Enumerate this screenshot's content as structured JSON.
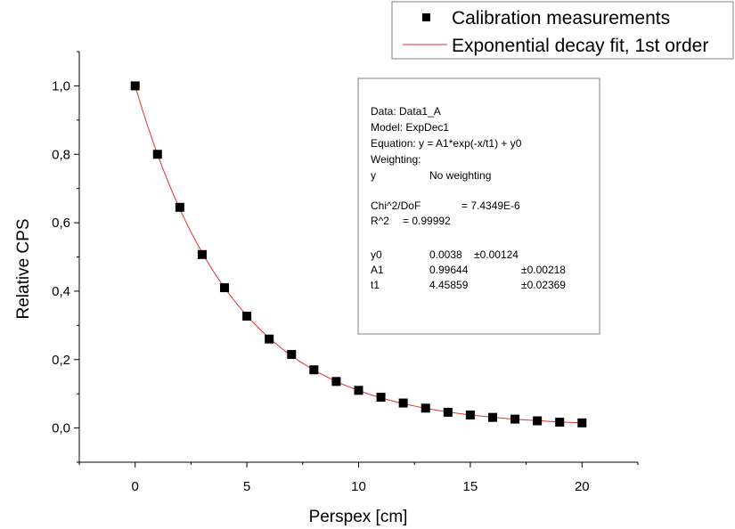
{
  "chart_data": {
    "type": "scatter",
    "xlabel": "Perspex [cm]",
    "ylabel": "Relative CPS",
    "xlim": [
      -2.5,
      22.5
    ],
    "ylim": [
      -0.1,
      1.1
    ],
    "x_ticks": [
      0,
      5,
      10,
      15,
      20
    ],
    "x_tick_labels": [
      "0",
      "5",
      "10",
      "15",
      "20"
    ],
    "y_ticks": [
      0.0,
      0.2,
      0.4,
      0.6,
      0.8,
      1.0
    ],
    "y_tick_labels": [
      "0,0",
      "0,2",
      "0,4",
      "0,6",
      "0,8",
      "1,0"
    ],
    "grid": false,
    "legend_position": "top-right",
    "series": [
      {
        "name": "Calibration measurements",
        "kind": "scatter",
        "marker": "square",
        "color": "#000000",
        "x": [
          0,
          1,
          2,
          3,
          4,
          5,
          6,
          7,
          8,
          9,
          10,
          11,
          12,
          13,
          14,
          15,
          16,
          17,
          18,
          19,
          20
        ],
        "y": [
          1.0,
          0.8,
          0.645,
          0.507,
          0.41,
          0.327,
          0.26,
          0.215,
          0.17,
          0.136,
          0.11,
          0.09,
          0.073,
          0.058,
          0.046,
          0.038,
          0.031,
          0.026,
          0.021,
          0.017,
          0.015
        ]
      },
      {
        "name": "Exponential decay fit, 1st order",
        "kind": "line",
        "color": "#e03030",
        "model": {
          "A1": 0.99644,
          "t1": 4.45859,
          "y0": 0.0038
        },
        "x_range": [
          0,
          20
        ]
      }
    ],
    "stats_box": {
      "lines": [
        "Data: Data1_A",
        "Model: ExpDec1",
        "Equation: y = A1*exp(-x/t1) + y0",
        "Weighting:"
      ],
      "weighting": {
        "key": "y",
        "value": "No weighting"
      },
      "chi2_label": "Chi^2/DoF",
      "chi2_value": "= 7.4349E-6",
      "r2_label": "R^2",
      "r2_value": "=  0.99992",
      "params": [
        {
          "name": "y0",
          "value": "0.0038",
          "error": "±0.00124"
        },
        {
          "name": "A1",
          "value": "0.99644",
          "error": "±0.00218"
        },
        {
          "name": "t1",
          "value": "4.45859",
          "error": "±0.02369"
        }
      ]
    }
  }
}
